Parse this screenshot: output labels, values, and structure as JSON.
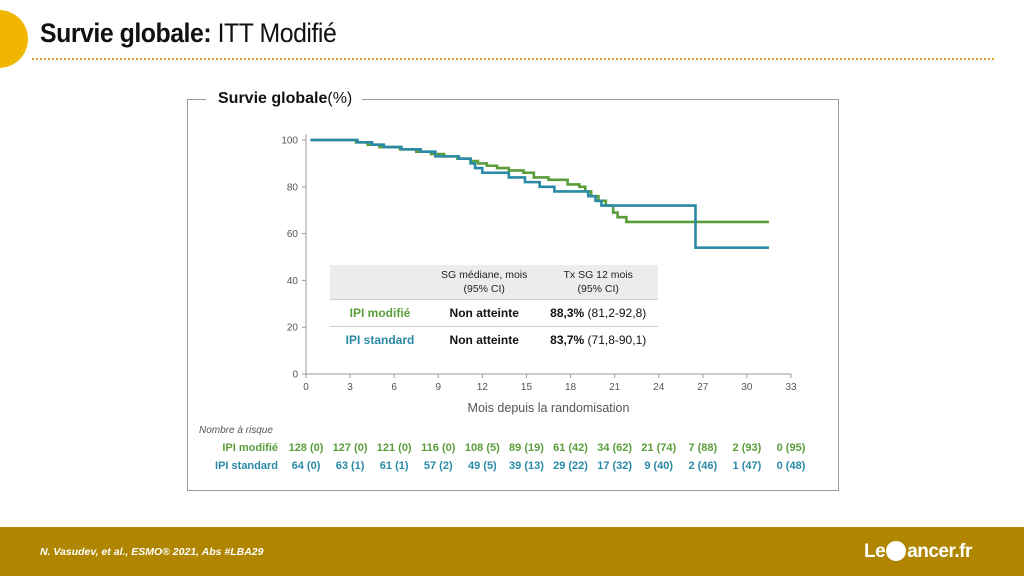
{
  "slide": {
    "title_bold": "Survie globale:",
    "title_rest": " ITT Modifié",
    "citation": "N. Vasudev, et al.,  ESMO® 2021, Abs #LBA29",
    "logo_left": "Le",
    "logo_right": "ancer.fr"
  },
  "panel": {
    "title_bold": "Survie globale",
    "title_rest": "(%)"
  },
  "colors": {
    "green": "#5a9e3a",
    "teal": "#2a8aa6",
    "axis": "#9a9a9a",
    "accent": "#f1b700",
    "footer": "#b08600"
  },
  "chart_data": {
    "type": "line",
    "xlabel": "Mois depuis la randomisation",
    "ylabel": "",
    "xlim": [
      0,
      33
    ],
    "ylim": [
      0,
      100
    ],
    "xticks": [
      0,
      3,
      6,
      9,
      12,
      15,
      18,
      21,
      24,
      27,
      30,
      33
    ],
    "yticks": [
      0,
      20,
      40,
      60,
      80,
      100
    ],
    "grid": false,
    "series": [
      {
        "name": "IPI modifié",
        "color": "#5a9e3a",
        "step": true,
        "x": [
          0.3,
          3.4,
          4.2,
          5.0,
          6.4,
          7.5,
          8.5,
          9.4,
          10.3,
          11.2,
          11.7,
          12.3,
          13.0,
          13.8,
          14.8,
          15.5,
          16.5,
          17.8,
          18.6,
          19.0,
          19.4,
          19.9,
          20.4,
          20.9,
          21.2,
          21.8,
          31.5
        ],
        "y": [
          100,
          99,
          98,
          97,
          96,
          95,
          94,
          93,
          92,
          91,
          90,
          89,
          88,
          87,
          86,
          84,
          83,
          81,
          80,
          78,
          76,
          74,
          72,
          69,
          67,
          65,
          65
        ]
      },
      {
        "name": "IPI standard",
        "color": "#2a8aa6",
        "step": true,
        "x": [
          0.3,
          3.5,
          4.5,
          5.3,
          6.5,
          7.8,
          8.8,
          10.4,
          11.2,
          11.5,
          12.0,
          13.8,
          14.9,
          15.9,
          16.9,
          19.2,
          19.7,
          20.1,
          26.5,
          31.5
        ],
        "y": [
          100,
          99,
          98,
          97,
          96,
          95,
          93,
          92,
          90,
          88,
          86,
          84,
          82,
          80,
          78,
          76,
          74,
          72,
          54,
          54
        ]
      }
    ],
    "at_risk": {
      "title": "Nombre à risque",
      "times": [
        0,
        3,
        6,
        9,
        12,
        15,
        18,
        21,
        24,
        27,
        30,
        33
      ],
      "rows": [
        {
          "name": "IPI modifié",
          "values": [
            "128 (0)",
            "127 (0)",
            "121 (0)",
            "116 (0)",
            "108 (5)",
            "89 (19)",
            "61 (42)",
            "34 (62)",
            "21 (74)",
            "7 (88)",
            "2 (93)",
            "0 (95)"
          ]
        },
        {
          "name": "IPI standard",
          "values": [
            "64 (0)",
            "63 (1)",
            "61 (1)",
            "57 (2)",
            "49 (5)",
            "39 (13)",
            "29 (22)",
            "17 (32)",
            "9 (40)",
            "2 (46)",
            "1 (47)",
            "0 (48)"
          ]
        }
      ]
    },
    "summary_table": {
      "col1": "SG médiane, mois",
      "col1_sub": "(95% CI)",
      "col2": "Tx SG 12 mois",
      "col2_sub": "(95% CI)",
      "rows": [
        {
          "label": "IPI modifié",
          "median": "Non atteinte",
          "rate_bold": "88,3%",
          "rate_ci": " (81,2-92,8)"
        },
        {
          "label": "IPI standard",
          "median": "Non atteinte",
          "rate_bold": "83,7%",
          "rate_ci": " (71,8-90,1)"
        }
      ]
    }
  }
}
